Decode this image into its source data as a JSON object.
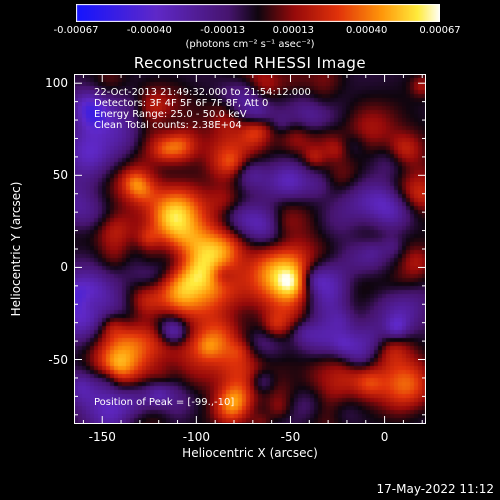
{
  "colorbar": {
    "ticks": [
      "-0.00067",
      "-0.00040",
      "-0.00013",
      "0.00013",
      "0.00040",
      "0.00067"
    ],
    "label": "(photons cm⁻² s⁻¹ asec⁻²)",
    "min": -0.00067,
    "max": 0.00067
  },
  "info": {
    "time_range": "22-Oct-2013 21:49:32.000 to 21:54:12.000",
    "detectors": "Detectors: 3F 4F 5F 6F 7F 8F, Att 0",
    "energy": "Energy Range: 25.0 - 50.0 keV",
    "clean": "Clean    Total counts: 2.38E+04",
    "peak": "Position of Peak = [-99.,-10]"
  },
  "timestamp": "17-May-2022 11:12",
  "chart_data": {
    "type": "heatmap",
    "title": "Reconstructed RHESSI Image",
    "xlabel": "Heliocentric X (arcsec)",
    "ylabel": "Heliocentric Y (arcsec)",
    "xlim": [
      -165,
      22
    ],
    "ylim": [
      -85,
      105
    ],
    "xticks": [
      -150,
      -100,
      -50,
      0
    ],
    "yticks": [
      -50,
      0,
      50,
      100
    ],
    "colormap": "RHESSI blue-violet-red-yellow-white",
    "zlim": [
      -0.00067,
      0.00067
    ],
    "peak_position": [
      -99,
      -10
    ],
    "hot_regions": [
      {
        "x": -100,
        "y": -10,
        "value": 0.00067
      },
      {
        "x": -110,
        "y": 30,
        "value": 0.00055
      },
      {
        "x": -88,
        "y": 8,
        "value": 0.0005
      },
      {
        "x": -48,
        "y": -8,
        "value": 0.00045
      },
      {
        "x": -62,
        "y": -2,
        "value": 0.00035
      },
      {
        "x": -135,
        "y": -38,
        "value": 0.00035
      },
      {
        "x": -145,
        "y": -52,
        "value": 0.0003
      },
      {
        "x": -95,
        "y": -45,
        "value": 0.0003
      },
      {
        "x": -75,
        "y": -55,
        "value": 0.0003
      },
      {
        "x": -20,
        "y": -55,
        "value": 0.00025
      },
      {
        "x": 10,
        "y": -65,
        "value": 0.0003
      },
      {
        "x": 15,
        "y": 40,
        "value": 0.00035
      },
      {
        "x": 10,
        "y": 0,
        "value": 0.0003
      },
      {
        "x": -30,
        "y": 40,
        "value": 0.0002
      },
      {
        "x": -5,
        "y": 75,
        "value": 0.0002
      },
      {
        "x": -80,
        "y": 65,
        "value": 0.00025
      },
      {
        "x": -120,
        "y": 85,
        "value": 0.00015
      }
    ],
    "cool_regions": [
      {
        "x": -158,
        "y": -20,
        "value": -0.00045
      },
      {
        "x": -160,
        "y": 30,
        "value": -0.0003
      },
      {
        "x": -150,
        "y": -75,
        "value": -0.0002
      },
      {
        "x": -35,
        "y": -15,
        "value": -0.0003
      },
      {
        "x": -20,
        "y": 30,
        "value": -0.00025
      },
      {
        "x": -60,
        "y": 20,
        "value": -0.0002
      },
      {
        "x": -20,
        "y": -40,
        "value": -0.00025
      }
    ]
  }
}
